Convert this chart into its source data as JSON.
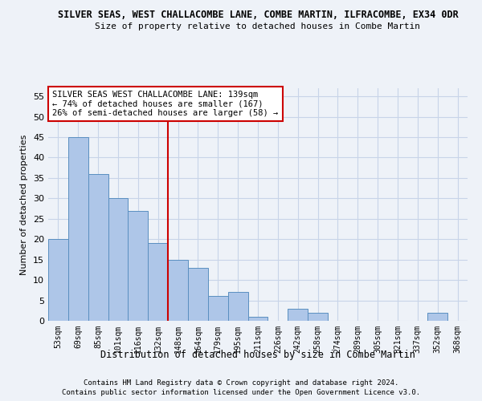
{
  "title": "SILVER SEAS, WEST CHALLACOMBE LANE, COMBE MARTIN, ILFRACOMBE, EX34 0DR",
  "subtitle": "Size of property relative to detached houses in Combe Martin",
  "xlabel": "Distribution of detached houses by size in Combe Martin",
  "ylabel": "Number of detached properties",
  "footnote1": "Contains HM Land Registry data © Crown copyright and database right 2024.",
  "footnote2": "Contains public sector information licensed under the Open Government Licence v3.0.",
  "categories": [
    "53sqm",
    "69sqm",
    "85sqm",
    "101sqm",
    "116sqm",
    "132sqm",
    "148sqm",
    "164sqm",
    "179sqm",
    "195sqm",
    "211sqm",
    "226sqm",
    "242sqm",
    "258sqm",
    "274sqm",
    "289sqm",
    "305sqm",
    "321sqm",
    "337sqm",
    "352sqm",
    "368sqm"
  ],
  "values": [
    20,
    45,
    36,
    30,
    27,
    19,
    15,
    13,
    6,
    7,
    1,
    0,
    3,
    2,
    0,
    0,
    0,
    0,
    0,
    2,
    0
  ],
  "bar_color": "#aec6e8",
  "bar_edge_color": "#5a8fc0",
  "grid_color": "#c8d4e8",
  "background_color": "#eef2f8",
  "property_line_x": 5.5,
  "annotation_text": "SILVER SEAS WEST CHALLACOMBE LANE: 139sqm\n← 74% of detached houses are smaller (167)\n26% of semi-detached houses are larger (58) →",
  "annotation_box_color": "#ffffff",
  "annotation_box_edge_color": "#cc0000",
  "vline_color": "#cc0000",
  "ylim": [
    0,
    57
  ],
  "yticks": [
    0,
    5,
    10,
    15,
    20,
    25,
    30,
    35,
    40,
    45,
    50,
    55
  ]
}
